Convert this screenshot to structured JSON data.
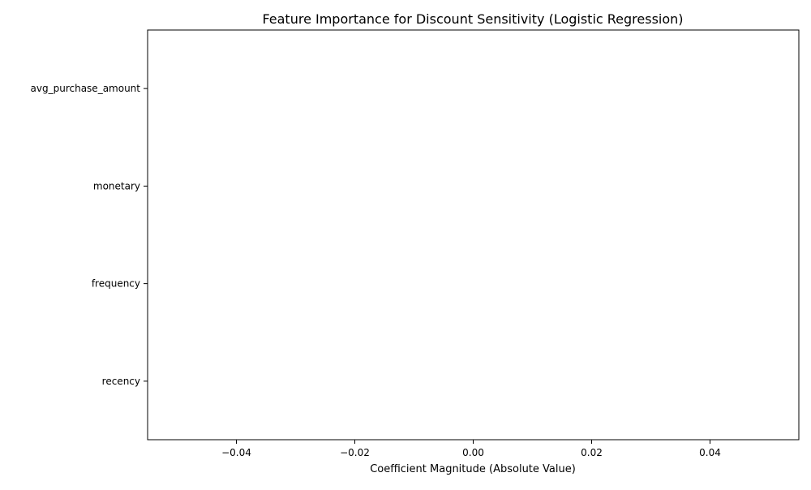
{
  "chart_data": {
    "type": "bar",
    "orientation": "horizontal",
    "title": "Feature Importance for Discount Sensitivity (Logistic Regression)",
    "xlabel": "Coefficient Magnitude (Absolute Value)",
    "ylabel": "",
    "categories": [
      "avg_purchase_amount",
      "monetary",
      "frequency",
      "recency"
    ],
    "values": [
      0,
      0,
      0,
      0
    ],
    "xlim": [
      -0.055,
      0.055
    ],
    "xticks": [
      -0.04,
      -0.02,
      0.0,
      0.02,
      0.04
    ],
    "xtick_labels": [
      "−0.04",
      "−0.02",
      "0.00",
      "0.02",
      "0.04"
    ],
    "bar_color": "#1f77b4",
    "grid": false,
    "legend": "none"
  }
}
